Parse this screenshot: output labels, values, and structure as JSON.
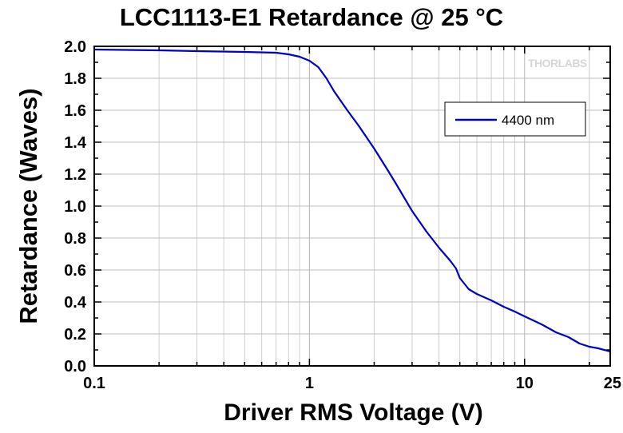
{
  "watermark": "THORLABS",
  "chart_data": {
    "type": "line",
    "title": "LCC1113-E1 Retardance @ 25 °C",
    "xlabel": "Driver RMS Voltage (V)",
    "ylabel": "Retardance (Waves)",
    "xscale": "log",
    "xlim": [
      0.1,
      25
    ],
    "ylim": [
      0,
      2.0
    ],
    "x_ticks": [
      0.1,
      1,
      10,
      25
    ],
    "x_tick_labels": [
      "0.1",
      "1",
      "10",
      "25"
    ],
    "y_ticks": [
      0,
      0.2,
      0.4,
      0.6,
      0.8,
      1.0,
      1.2,
      1.4,
      1.6,
      1.8,
      2.0
    ],
    "y_tick_labels": [
      "0.0",
      "0.2",
      "0.4",
      "0.6",
      "0.8",
      "1.0",
      "1.2",
      "1.4",
      "1.6",
      "1.8",
      "2.0"
    ],
    "grid": true,
    "legend_position": "top-right",
    "series": [
      {
        "name": "4400 nm",
        "color": "#0000cc",
        "x": [
          0.1,
          0.2,
          0.3,
          0.5,
          0.7,
          0.8,
          0.9,
          1.0,
          1.1,
          1.2,
          1.3,
          1.5,
          1.7,
          2.0,
          2.3,
          2.5,
          3.0,
          3.5,
          4.0,
          4.5,
          4.8,
          5.0,
          5.5,
          6.0,
          7.0,
          8.0,
          9.0,
          10.0,
          12.0,
          14.0,
          16.0,
          18.0,
          20.0,
          22.0,
          25.0
        ],
        "y": [
          1.98,
          1.975,
          1.97,
          1.965,
          1.96,
          1.95,
          1.935,
          1.91,
          1.87,
          1.8,
          1.72,
          1.6,
          1.5,
          1.36,
          1.23,
          1.15,
          0.97,
          0.84,
          0.74,
          0.66,
          0.61,
          0.55,
          0.48,
          0.45,
          0.41,
          0.37,
          0.34,
          0.31,
          0.26,
          0.21,
          0.18,
          0.14,
          0.12,
          0.11,
          0.09
        ]
      }
    ]
  }
}
